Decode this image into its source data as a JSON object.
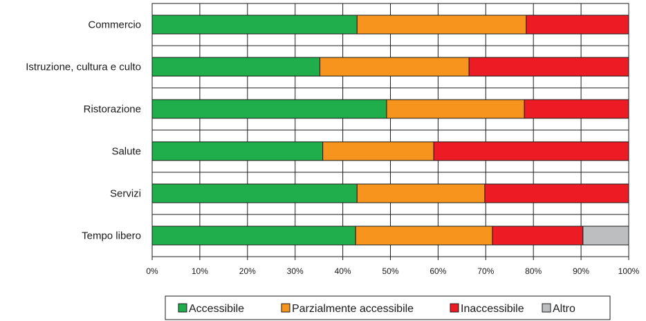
{
  "chart_data": {
    "type": "bar",
    "orientation": "horizontal",
    "stacked": true,
    "percent": true,
    "categories": [
      "Commercio",
      "Istruzione, cultura e culto",
      "Ristorazione",
      "Salute",
      "Servizi",
      "Tempo libero"
    ],
    "series": [
      {
        "name": "Accessibile",
        "color": "#1fae4b",
        "values": [
          43,
          35.2,
          49.2,
          35.8,
          43,
          42.7
        ]
      },
      {
        "name": "Parzialmente accessibile",
        "color": "#f7941d",
        "values": [
          35.5,
          31.3,
          28.9,
          23.3,
          26.8,
          28.7
        ]
      },
      {
        "name": "Inaccessibile",
        "color": "#ed1c24",
        "values": [
          21.5,
          33.5,
          21.9,
          40.9,
          30.2,
          19
        ]
      },
      {
        "name": "Altro",
        "color": "#bcbec0",
        "values": [
          0,
          0,
          0,
          0,
          0,
          9.6
        ]
      }
    ],
    "x_ticks": [
      "0%",
      "10%",
      "20%",
      "30%",
      "40%",
      "50%",
      "60%",
      "70%",
      "80%",
      "90%",
      "100%"
    ],
    "xlim": [
      0,
      100
    ],
    "grid": "vertical",
    "legend": "bottom-center",
    "title": "",
    "xlabel": "",
    "ylabel": ""
  }
}
